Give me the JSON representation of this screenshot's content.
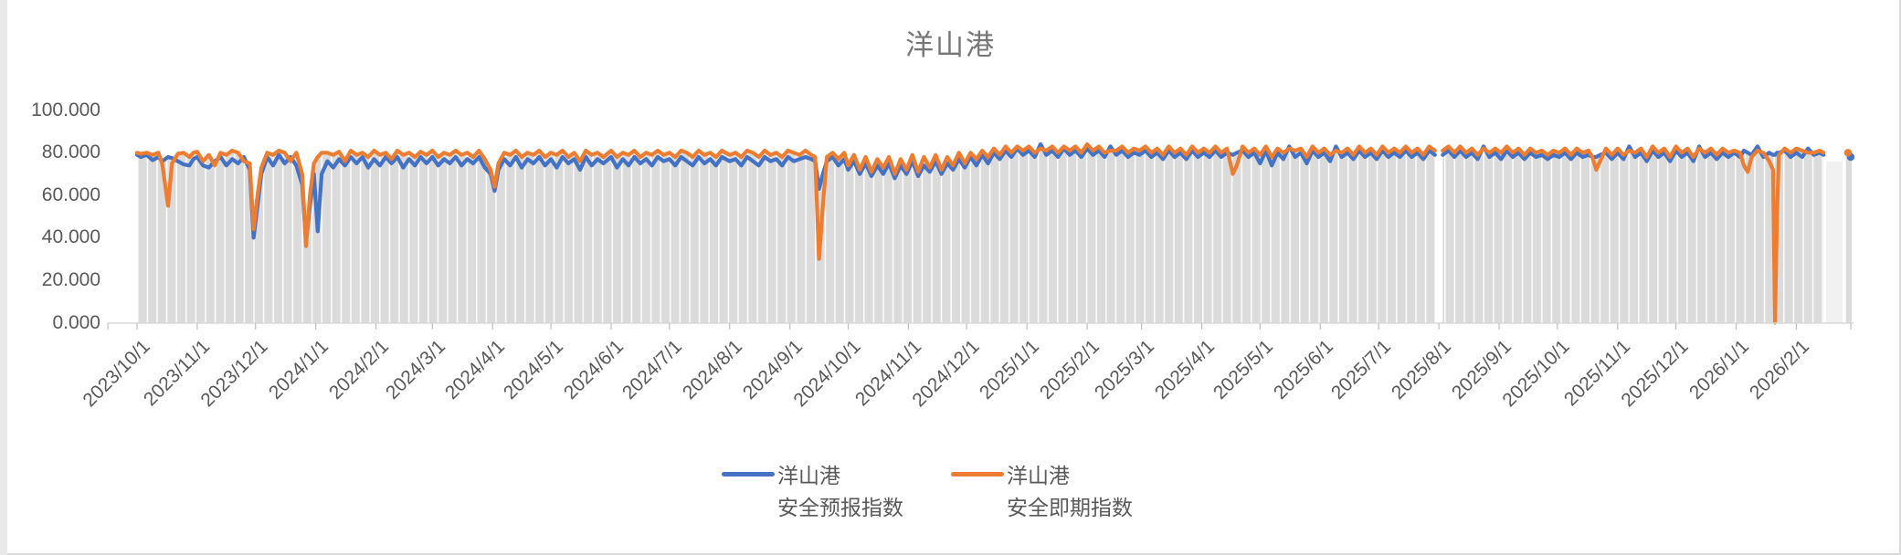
{
  "chart_data": {
    "type": "line",
    "title": "洋山港",
    "xlabel": "",
    "ylabel": "",
    "ylim": [
      0,
      100
    ],
    "ytick_labels": [
      "100.000",
      "80.000",
      "60.000",
      "40.000",
      "20.000",
      "0.000"
    ],
    "xtick_labels": [
      "2023/10/1",
      "2023/11/1",
      "2023/12/1",
      "2024/1/1",
      "2024/2/1",
      "2024/3/1",
      "2024/4/1",
      "2024/5/1",
      "2024/6/1",
      "2024/7/1",
      "2024/8/1",
      "2024/9/1",
      "2024/10/1",
      "2024/11/1",
      "2024/12/1",
      "2025/1/1",
      "2025/2/1",
      "2025/3/1",
      "2025/4/1",
      "2025/5/1",
      "2025/6/1",
      "2025/7/1",
      "2025/8/1",
      "2025/9/1",
      "2025/10/1",
      "2025/11/1",
      "2025/12/1",
      "2026/1/1",
      "2026/2/1"
    ],
    "x_start_date": "2023/10/1",
    "x_axis_type": "daily categories",
    "grid": "vertical drop-lines, no horizontal gridlines",
    "legend_position": "bottom-center",
    "plot_area_fill": "#FFFFFF",
    "droplines_fill": "#DBDBDB",
    "series": [
      {
        "name": "洋山港安全预报指数",
        "name_lines": [
          "洋山港",
          "安全预报指数"
        ],
        "color": "#4472C4"
      },
      {
        "name": "洋山港安全即期指数",
        "name_lines": [
          "洋山港",
          "安全即期指数"
        ],
        "color": "#ED7D31"
      }
    ],
    "points_schema": [
      "days_since_2023/10/1",
      "安全预报指数(blue)",
      "安全即期指数(orange)",
      "null = no data"
    ],
    "points": [
      [
        0,
        79,
        80
      ],
      [
        2,
        78,
        79.5
      ],
      [
        5,
        79,
        80
      ],
      [
        8,
        76.5,
        79
      ],
      [
        11,
        78,
        80
      ],
      [
        13,
        76,
        74.5
      ],
      [
        16,
        78,
        55
      ],
      [
        18,
        77.5,
        75
      ],
      [
        21,
        76,
        79.5
      ],
      [
        24,
        74.5,
        80
      ],
      [
        27,
        74,
        78
      ],
      [
        29,
        77,
        80
      ],
      [
        31,
        78,
        80.5
      ],
      [
        34,
        74,
        76
      ],
      [
        37,
        73,
        79
      ],
      [
        40,
        76,
        74
      ],
      [
        43,
        78,
        80
      ],
      [
        46,
        74,
        79
      ],
      [
        49,
        77,
        81
      ],
      [
        52,
        75,
        80
      ],
      [
        55,
        78,
        76
      ],
      [
        58,
        72,
        75
      ],
      [
        60,
        40,
        44
      ],
      [
        62,
        55,
        60
      ],
      [
        64,
        70,
        73
      ],
      [
        67,
        78,
        80
      ],
      [
        70,
        74,
        79
      ],
      [
        73,
        79,
        81
      ],
      [
        76,
        75,
        80
      ],
      [
        79,
        78,
        76
      ],
      [
        82,
        74,
        80
      ],
      [
        85,
        65,
        70
      ],
      [
        87,
        38,
        36
      ],
      [
        89,
        55,
        60
      ],
      [
        91,
        70,
        75
      ],
      [
        93,
        43,
        78
      ],
      [
        95,
        70,
        80
      ],
      [
        98,
        76,
        80
      ],
      [
        101,
        73,
        79
      ],
      [
        104,
        77,
        80.5
      ],
      [
        107,
        74,
        76
      ],
      [
        110,
        78,
        81
      ],
      [
        113,
        75,
        79
      ],
      [
        116,
        78,
        80
      ],
      [
        119,
        73,
        78
      ],
      [
        122,
        77,
        81
      ],
      [
        125,
        74,
        79
      ],
      [
        128,
        78,
        80
      ],
      [
        131,
        75,
        77
      ],
      [
        134,
        78,
        81
      ],
      [
        137,
        73,
        79
      ],
      [
        140,
        77,
        80
      ],
      [
        143,
        74,
        78
      ],
      [
        146,
        78,
        80.5
      ],
      [
        149,
        75,
        79
      ],
      [
        152,
        78,
        81
      ],
      [
        155,
        74,
        78
      ],
      [
        158,
        77,
        80
      ],
      [
        161,
        75,
        79
      ],
      [
        164,
        78,
        81
      ],
      [
        167,
        74,
        79
      ],
      [
        170,
        77,
        80
      ],
      [
        173,
        75,
        78
      ],
      [
        176,
        78,
        81
      ],
      [
        179,
        73,
        77
      ],
      [
        182,
        70,
        72
      ],
      [
        184,
        62,
        64
      ],
      [
        186,
        72,
        75
      ],
      [
        189,
        77,
        80
      ],
      [
        192,
        74,
        79
      ],
      [
        195,
        78,
        81
      ],
      [
        198,
        73,
        78
      ],
      [
        201,
        77,
        80
      ],
      [
        204,
        75,
        79
      ],
      [
        207,
        78,
        81
      ],
      [
        210,
        74,
        78
      ],
      [
        213,
        77,
        80
      ],
      [
        216,
        73,
        79
      ],
      [
        219,
        78,
        81
      ],
      [
        222,
        75,
        78
      ],
      [
        225,
        77,
        80
      ],
      [
        228,
        72,
        76
      ],
      [
        231,
        78,
        81
      ],
      [
        234,
        74,
        79
      ],
      [
        237,
        77,
        80
      ],
      [
        240,
        75,
        78
      ],
      [
        244,
        78,
        81
      ],
      [
        247,
        73,
        78
      ],
      [
        250,
        77,
        80
      ],
      [
        253,
        74,
        79
      ],
      [
        256,
        78,
        81
      ],
      [
        259,
        75,
        78
      ],
      [
        262,
        77,
        80
      ],
      [
        265,
        74,
        79
      ],
      [
        268,
        78,
        81
      ],
      [
        271,
        76,
        79
      ],
      [
        274,
        77,
        80
      ],
      [
        277,
        74,
        78
      ],
      [
        280,
        78,
        81
      ],
      [
        283,
        76,
        80
      ],
      [
        286,
        74,
        78
      ],
      [
        289,
        78,
        81
      ],
      [
        292,
        75,
        79
      ],
      [
        295,
        77,
        80
      ],
      [
        298,
        74,
        78
      ],
      [
        301,
        78,
        81
      ],
      [
        305,
        76,
        79
      ],
      [
        308,
        77,
        80
      ],
      [
        311,
        74,
        78
      ],
      [
        314,
        78,
        81
      ],
      [
        317,
        76,
        80
      ],
      [
        320,
        74,
        78
      ],
      [
        323,
        78,
        81
      ],
      [
        326,
        76,
        79
      ],
      [
        329,
        77,
        80
      ],
      [
        332,
        74,
        78
      ],
      [
        335,
        78,
        81
      ],
      [
        338,
        76,
        80
      ],
      [
        341,
        77,
        79
      ],
      [
        344,
        78,
        81
      ],
      [
        347,
        77,
        79
      ],
      [
        349,
        76,
        78
      ],
      [
        351,
        63,
        30
      ],
      [
        353,
        70,
        55
      ],
      [
        355,
        76,
        78
      ],
      [
        358,
        78,
        80
      ],
      [
        361,
        74,
        77
      ],
      [
        364,
        77,
        80
      ],
      [
        366,
        72,
        74
      ],
      [
        369,
        76,
        79
      ],
      [
        372,
        70,
        72
      ],
      [
        375,
        75,
        78
      ],
      [
        378,
        69,
        71
      ],
      [
        381,
        74,
        77
      ],
      [
        384,
        70,
        73
      ],
      [
        387,
        75,
        78
      ],
      [
        390,
        68,
        70
      ],
      [
        393,
        74,
        77
      ],
      [
        396,
        70,
        72
      ],
      [
        399,
        76,
        79
      ],
      [
        402,
        69,
        71
      ],
      [
        405,
        74,
        78
      ],
      [
        408,
        71,
        73
      ],
      [
        411,
        76,
        79
      ],
      [
        414,
        70,
        72
      ],
      [
        417,
        75,
        78
      ],
      [
        420,
        72,
        74
      ],
      [
        423,
        77,
        80
      ],
      [
        426,
        73,
        75
      ],
      [
        429,
        78,
        80
      ],
      [
        432,
        74,
        77
      ],
      [
        435,
        79,
        81
      ],
      [
        438,
        75,
        78
      ],
      [
        441,
        80,
        82
      ],
      [
        444,
        77,
        79
      ],
      [
        447,
        81,
        83
      ],
      [
        450,
        78,
        80
      ],
      [
        453,
        82,
        83
      ],
      [
        456,
        79,
        81
      ],
      [
        459,
        81,
        83
      ],
      [
        462,
        78,
        80
      ],
      [
        465,
        84,
        82
      ],
      [
        468,
        79,
        81
      ],
      [
        471,
        81,
        83
      ],
      [
        474,
        78,
        80
      ],
      [
        477,
        82,
        83
      ],
      [
        480,
        79,
        81
      ],
      [
        483,
        81,
        83
      ],
      [
        486,
        78,
        80
      ],
      [
        489,
        82,
        84
      ],
      [
        492,
        79,
        81
      ],
      [
        495,
        81,
        83
      ],
      [
        498,
        78,
        80
      ],
      [
        501,
        83,
        81
      ],
      [
        504,
        79,
        81
      ],
      [
        507,
        81,
        83
      ],
      [
        510,
        78,
        80
      ],
      [
        513,
        80,
        82
      ],
      [
        516,
        79,
        81
      ],
      [
        519,
        81,
        83
      ],
      [
        522,
        78,
        80
      ],
      [
        525,
        80,
        82
      ],
      [
        528,
        77,
        79
      ],
      [
        531,
        81,
        83
      ],
      [
        534,
        78,
        80
      ],
      [
        537,
        80,
        82
      ],
      [
        540,
        77,
        79
      ],
      [
        543,
        81,
        83
      ],
      [
        546,
        78,
        80
      ],
      [
        549,
        80,
        82
      ],
      [
        552,
        78,
        80
      ],
      [
        555,
        81,
        83
      ],
      [
        558,
        78,
        80
      ],
      [
        561,
        80,
        82
      ],
      [
        564,
        79,
        70
      ],
      [
        566,
        80,
        74
      ],
      [
        569,
        81,
        83
      ],
      [
        572,
        78,
        80
      ],
      [
        575,
        80,
        82
      ],
      [
        578,
        75,
        79
      ],
      [
        581,
        81,
        83
      ],
      [
        584,
        74,
        78
      ],
      [
        587,
        80,
        82
      ],
      [
        590,
        77,
        80
      ],
      [
        593,
        83,
        82
      ],
      [
        596,
        78,
        81
      ],
      [
        599,
        80,
        82
      ],
      [
        602,
        75,
        78
      ],
      [
        605,
        81,
        83
      ],
      [
        608,
        78,
        80
      ],
      [
        611,
        80,
        82
      ],
      [
        614,
        76,
        79
      ],
      [
        617,
        83,
        81
      ],
      [
        620,
        78,
        80
      ],
      [
        623,
        80,
        82
      ],
      [
        626,
        77,
        79
      ],
      [
        629,
        81,
        83
      ],
      [
        632,
        78,
        80
      ],
      [
        635,
        80,
        82
      ],
      [
        638,
        77,
        79
      ],
      [
        641,
        81,
        83
      ],
      [
        644,
        78,
        80
      ],
      [
        647,
        80,
        82
      ],
      [
        650,
        78,
        80
      ],
      [
        653,
        81,
        83
      ],
      [
        656,
        78,
        80
      ],
      [
        659,
        80,
        82
      ],
      [
        662,
        77,
        79
      ],
      [
        665,
        81,
        83
      ],
      [
        668,
        79,
        81
      ],
      [
        670,
        null,
        null
      ],
      [
        672,
        79,
        81
      ],
      [
        675,
        81,
        83
      ],
      [
        678,
        78,
        80
      ],
      [
        681,
        81,
        83
      ],
      [
        684,
        78,
        80
      ],
      [
        687,
        80,
        82
      ],
      [
        690,
        77,
        79
      ],
      [
        693,
        83,
        82
      ],
      [
        696,
        78,
        80
      ],
      [
        699,
        80,
        82
      ],
      [
        702,
        77,
        80
      ],
      [
        705,
        81,
        83
      ],
      [
        708,
        78,
        80
      ],
      [
        711,
        80,
        82
      ],
      [
        714,
        77,
        79
      ],
      [
        717,
        80,
        82
      ],
      [
        720,
        78,
        80
      ],
      [
        723,
        79,
        81
      ],
      [
        726,
        77,
        79
      ],
      [
        729,
        79,
        81
      ],
      [
        732,
        78,
        80
      ],
      [
        735,
        80,
        82
      ],
      [
        738,
        77,
        79
      ],
      [
        741,
        80,
        82
      ],
      [
        744,
        78,
        80
      ],
      [
        747,
        79,
        81
      ],
      [
        749,
        78,
        78
      ],
      [
        751,
        78,
        72
      ],
      [
        753,
        79,
        76
      ],
      [
        756,
        80,
        82
      ],
      [
        759,
        77,
        79
      ],
      [
        762,
        80,
        82
      ],
      [
        765,
        77,
        79
      ],
      [
        768,
        83,
        81
      ],
      [
        771,
        78,
        80
      ],
      [
        774,
        80,
        82
      ],
      [
        777,
        76,
        78
      ],
      [
        780,
        81,
        83
      ],
      [
        783,
        78,
        80
      ],
      [
        786,
        80,
        82
      ],
      [
        789,
        76,
        78
      ],
      [
        792,
        81,
        83
      ],
      [
        795,
        78,
        80
      ],
      [
        798,
        80,
        82
      ],
      [
        801,
        76,
        78
      ],
      [
        804,
        83,
        82
      ],
      [
        807,
        78,
        80
      ],
      [
        810,
        80,
        82
      ],
      [
        813,
        77,
        79
      ],
      [
        816,
        80,
        82
      ],
      [
        819,
        78,
        80
      ],
      [
        822,
        80,
        81
      ],
      [
        825,
        78,
        80
      ],
      [
        827,
        81,
        74
      ],
      [
        829,
        80,
        71
      ],
      [
        831,
        79,
        78
      ],
      [
        834,
        83,
        81
      ],
      [
        837,
        78,
        80
      ],
      [
        840,
        80,
        76
      ],
      [
        842,
        79,
        72
      ],
      [
        843,
        79,
        0
      ],
      [
        844,
        80,
        50
      ],
      [
        845,
        80,
        79
      ],
      [
        848,
        81,
        82
      ],
      [
        851,
        78,
        80
      ],
      [
        854,
        80,
        82
      ],
      [
        857,
        78,
        81
      ],
      [
        860,
        82,
        80
      ],
      [
        863,
        79,
        80
      ],
      [
        866,
        80,
        81
      ],
      [
        868,
        79,
        80
      ],
      [
        869,
        null,
        null
      ],
      [
        881,
        78,
        80
      ]
    ]
  },
  "colors": {
    "title_text": "#767676",
    "axis_text": "#595959",
    "axis_line": "#D9D9D9",
    "tick_mark": "#BFBFBF",
    "dropline_gray": "#DBDBDB",
    "dropline_stripe": "#FCFCFC",
    "no_data_gap": "#F1F1F1",
    "series_blue": "#4472C4",
    "series_orange": "#ED7D31"
  }
}
